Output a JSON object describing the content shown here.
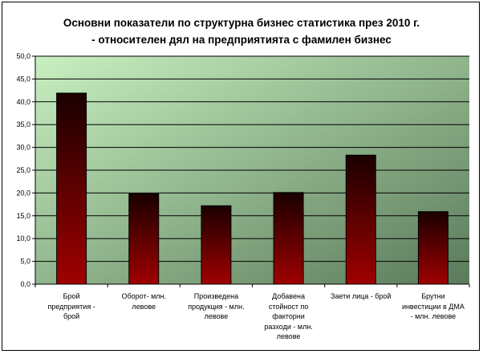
{
  "chart_data": {
    "type": "bar",
    "title_lines": [
      "Основни показатели по структурна бизнес статистика през 2010 г.",
      "- относителен дял на предприятията с фамилен бизнес"
    ],
    "categories": [
      "Брой предприятия - брой",
      "Оборот- млн. левове",
      "Произведена продукция - млн. левове",
      "Добавена стойност по факторни разходи - млн. левове",
      "Заети лица - брой",
      "Брутни инвестиции в ДМА - млн. левове"
    ],
    "category_lines": [
      [
        "Брой",
        "предприятия -",
        "брой"
      ],
      [
        "Оборот- млн.",
        "левове"
      ],
      [
        "Произведена",
        "продукция - млн.",
        "левове"
      ],
      [
        "Добавена",
        "стойност по",
        "факторни",
        "разходи - млн.",
        "левове"
      ],
      [
        "Заети лица - брой"
      ],
      [
        "Брутни",
        "инвестиции в ДМА",
        "- млн. левове"
      ]
    ],
    "values": [
      41.9,
      19.8,
      17.2,
      20.1,
      28.3,
      15.9
    ],
    "ylim": [
      0,
      50
    ],
    "ytick_labels": [
      "0,0",
      "5,0",
      "10,0",
      "15,0",
      "20,0",
      "25,0",
      "30,0",
      "35,0",
      "40,0",
      "45,0",
      "50,0"
    ],
    "grid": true,
    "legend": "none",
    "colors": {
      "bar_top": "#1a0000",
      "bar_bottom": "#a00000",
      "plot_bg_top_left": "#c8f0c0",
      "plot_bg_bottom_right": "#5a7a5a"
    }
  }
}
